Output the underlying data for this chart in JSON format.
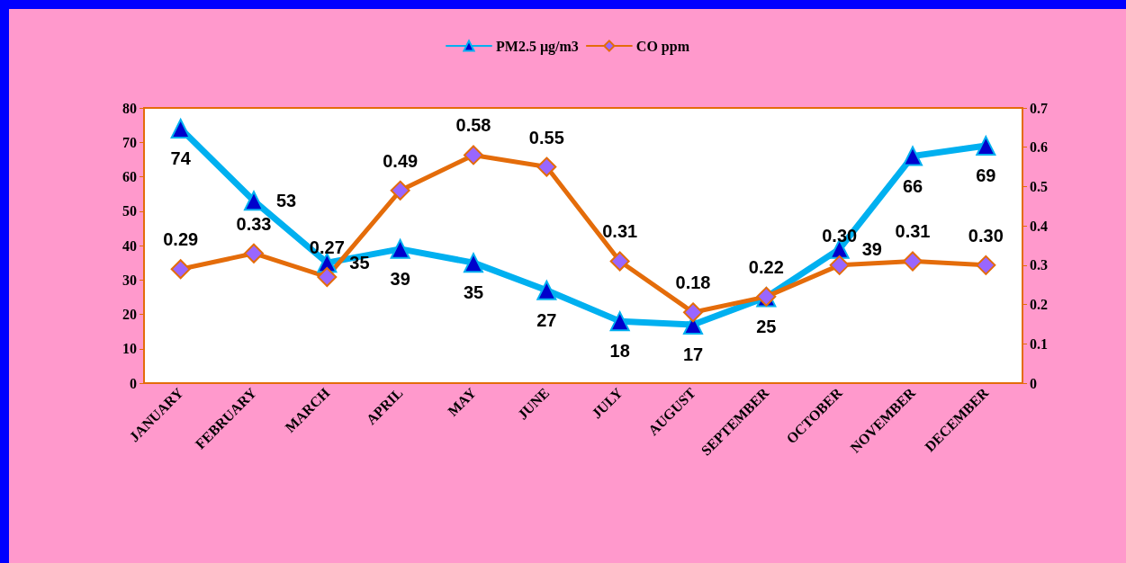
{
  "chart_data": {
    "type": "line",
    "categories": [
      "JANUARY",
      "FEBRUARY",
      "MARCH",
      "APRIL",
      "MAY",
      "JUNE",
      "JULY",
      "AUGUST",
      "SEPTEMBER",
      "OCTOBER",
      "NOVEMBER",
      "DECEMBER"
    ],
    "series": [
      {
        "name": "PM2.5 µg/m3",
        "color": "#00b0f0",
        "marker": "triangle",
        "values": [
          74,
          53,
          35,
          39,
          35,
          27,
          18,
          17,
          25,
          39,
          66,
          69
        ],
        "value_labels": [
          "74",
          "53",
          "35",
          "39",
          "35",
          "27",
          "18",
          "17",
          "25",
          "39",
          "66",
          "69"
        ]
      },
      {
        "name": "CO ppm",
        "color": "#e46c0a",
        "marker": "diamond",
        "axis": "y2",
        "values": [
          0.29,
          0.33,
          0.27,
          0.49,
          0.58,
          0.55,
          0.31,
          0.18,
          0.22,
          0.3,
          0.31,
          0.3
        ],
        "value_labels": [
          "0.29",
          "0.33",
          "0.27",
          "0.49",
          "0.58",
          "0.55",
          "0.31",
          "0.18",
          "0.22",
          "0.30",
          "0.31",
          "0.30"
        ]
      }
    ],
    "ylim": [
      0,
      80
    ],
    "yticks": [
      0,
      10,
      20,
      30,
      40,
      50,
      60,
      70,
      80
    ],
    "y2lim": [
      0,
      0.7
    ],
    "y2ticks": [
      0,
      0.1,
      0.2,
      0.3,
      0.4,
      0.5,
      0.6,
      0.7
    ],
    "legend": "top",
    "grid": false
  }
}
